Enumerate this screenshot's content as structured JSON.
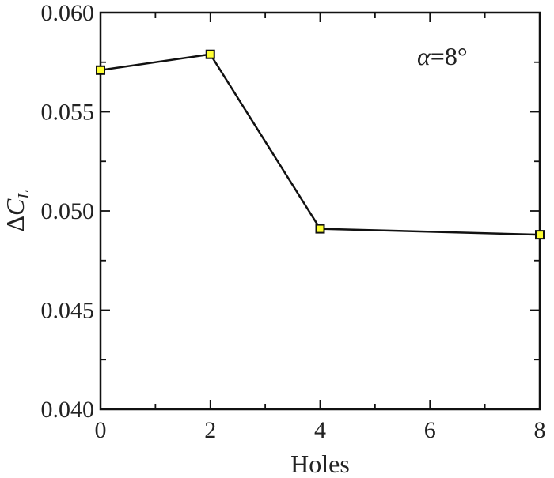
{
  "chart_data": {
    "type": "line",
    "x": [
      0,
      2,
      4,
      8
    ],
    "series": [
      {
        "values": [
          0.0571,
          0.0579,
          0.0491,
          0.0488
        ]
      }
    ],
    "xlabel": "Holes",
    "ylabel": {
      "prefix": "Δ",
      "main": "C",
      "sub": "L"
    },
    "xlim": [
      0,
      8
    ],
    "ylim": [
      0.04,
      0.06
    ],
    "xticks": [
      0,
      2,
      4,
      6,
      8
    ],
    "xtick_labels": [
      "0",
      "2",
      "4",
      "6",
      "8"
    ],
    "yticks": [
      0.04,
      0.045,
      0.05,
      0.055,
      0.06
    ],
    "ytick_labels": [
      "0.040",
      "0.045",
      "0.050",
      "0.055",
      "0.060"
    ],
    "annotation": {
      "greek": "α",
      "rest": "=8°"
    },
    "marker_fill": "#ffff33",
    "line_color": "#111111",
    "grid": false
  }
}
